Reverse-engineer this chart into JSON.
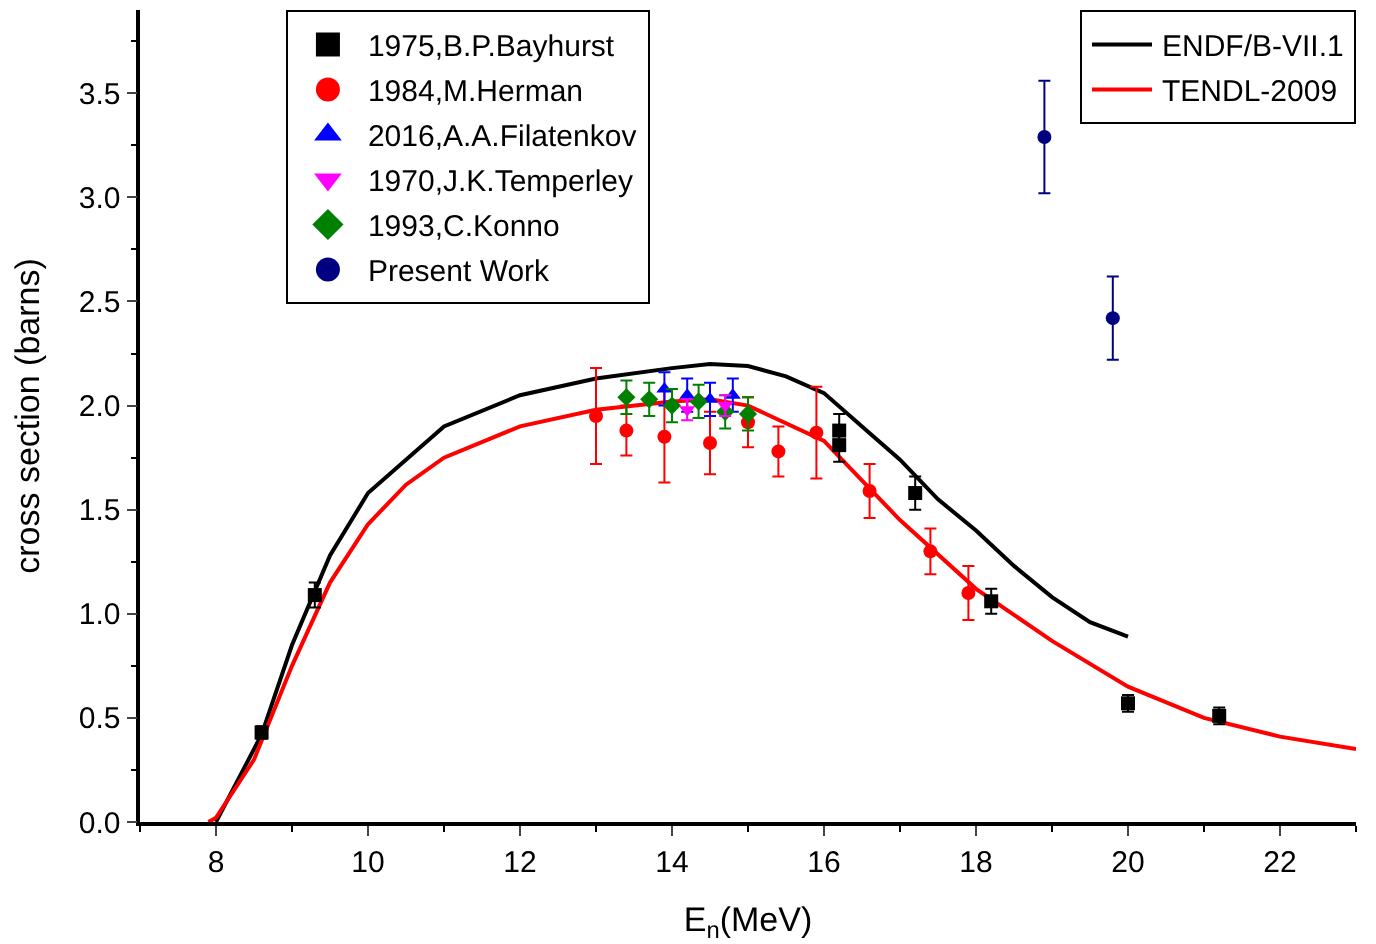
{
  "chart_data": {
    "type": "scatter",
    "xlabel": "E$_{n}$(MeV)",
    "ylabel": "cross section (barns)",
    "xlim": [
      7,
      23
    ],
    "xticks": [
      8,
      10,
      12,
      14,
      16,
      18,
      20,
      22
    ],
    "ylim": [
      0,
      3.9
    ],
    "yticks": [
      {
        "value": 0,
        "label": "0.0"
      },
      0.5,
      {
        "value": 1,
        "label": "1.0"
      },
      1.5,
      {
        "value": 2,
        "label": "2.0"
      },
      2.5,
      {
        "value": 3,
        "label": "3.0"
      },
      3.5
    ],
    "legend": "top",
    "series": [
      {
        "name": "1975,B.P.Bayhurst",
        "marker": "square",
        "color": "#000000",
        "x": [
          8.6,
          9.3,
          16.2,
          16.2,
          17.2,
          18.2,
          20.0,
          21.2
        ],
        "values": [
          0.43,
          1.09,
          1.88,
          1.81,
          1.58,
          1.06,
          0.57,
          0.51
        ],
        "errors": [
          0.03,
          0.06,
          0.08,
          0.08,
          0.08,
          0.06,
          0.04,
          0.04
        ]
      },
      {
        "name": "1984,M.Herman",
        "marker": "circle",
        "color": "#ff0000",
        "x": [
          13.0,
          13.4,
          13.9,
          14.5,
          15.0,
          15.4,
          15.9,
          16.6,
          17.4,
          17.9
        ],
        "values": [
          1.95,
          1.88,
          1.85,
          1.82,
          1.92,
          1.78,
          1.87,
          1.59,
          1.3,
          1.1
        ],
        "errors": [
          0.23,
          0.12,
          0.22,
          0.15,
          0.12,
          0.12,
          0.22,
          0.13,
          0.11,
          0.13
        ]
      },
      {
        "name": "2016,A.A.Filatenkov",
        "marker": "triangle",
        "color": "#0000ff",
        "x": [
          13.9,
          14.2,
          14.5,
          14.8
        ],
        "values": [
          2.08,
          2.05,
          2.03,
          2.05
        ],
        "errors": [
          0.08,
          0.08,
          0.08,
          0.08
        ]
      },
      {
        "name": "1970,J.K.Temperley",
        "marker": "triangle-down",
        "color": "#ff00ff",
        "x": [
          14.2,
          14.7
        ],
        "values": [
          1.98,
          2.0
        ],
        "errors": [
          0.05,
          0.05
        ]
      },
      {
        "name": "1993,C.Konno",
        "marker": "diamond",
        "color": "#008000",
        "x": [
          13.4,
          13.7,
          14.0,
          14.35,
          14.7,
          15.0
        ],
        "values": [
          2.04,
          2.03,
          2.0,
          2.02,
          1.97,
          1.96
        ],
        "errors": [
          0.08,
          0.08,
          0.08,
          0.08,
          0.08,
          0.08
        ]
      },
      {
        "name": "Present Work",
        "marker": "circle",
        "color": "#000080",
        "x": [
          18.9,
          19.8
        ],
        "values": [
          3.29,
          2.42
        ],
        "errors": [
          0.27,
          0.2
        ]
      },
      {
        "name": "ENDF/B-VII.1",
        "type": "line",
        "line_style": "solid",
        "color": "#000000",
        "x": [
          8.0,
          8.6,
          9.0,
          9.5,
          10,
          11,
          12,
          13,
          14,
          14.5,
          15,
          15.5,
          16,
          16.5,
          17,
          17.5,
          18,
          18.5,
          19,
          19.5,
          20
        ],
        "values": [
          0.0,
          0.42,
          0.85,
          1.28,
          1.58,
          1.9,
          2.05,
          2.13,
          2.18,
          2.2,
          2.19,
          2.14,
          2.06,
          1.9,
          1.74,
          1.55,
          1.4,
          1.23,
          1.08,
          0.96,
          0.89
        ]
      },
      {
        "name": "TENDL-2009",
        "type": "line",
        "line_style": "solid",
        "color": "#ff0000",
        "x": [
          7.9,
          8.0,
          8.5,
          9.0,
          9.5,
          10,
          10.5,
          11,
          12,
          13,
          14,
          14.5,
          15,
          16,
          17,
          18,
          19,
          20,
          21,
          22,
          23
        ],
        "values": [
          0.0,
          0.02,
          0.3,
          0.75,
          1.15,
          1.43,
          1.62,
          1.75,
          1.9,
          1.98,
          2.02,
          2.03,
          2.0,
          1.83,
          1.45,
          1.12,
          0.87,
          0.65,
          0.5,
          0.41,
          0.35
        ]
      }
    ]
  }
}
